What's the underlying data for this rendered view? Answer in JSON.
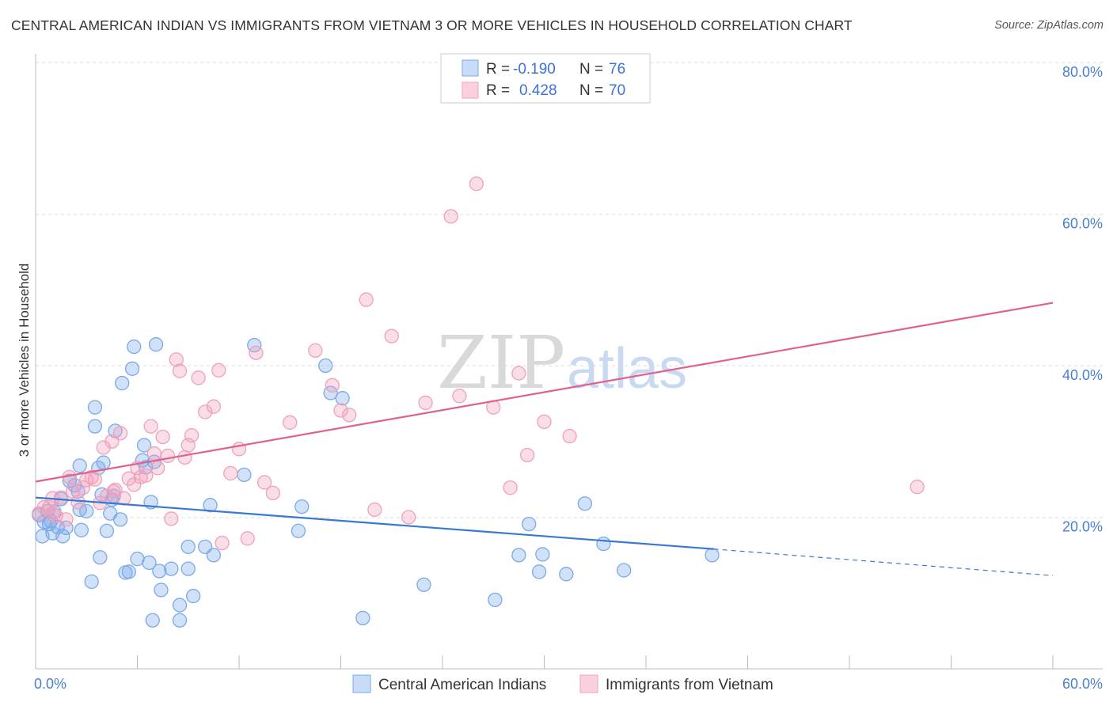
{
  "title": "CENTRAL AMERICAN INDIAN VS IMMIGRANTS FROM VIETNAM 3 OR MORE VEHICLES IN HOUSEHOLD CORRELATION CHART",
  "source": "Source: ZipAtlas.com",
  "watermark": {
    "zip": "ZIP",
    "atlas": "atlas"
  },
  "chart_data": {
    "type": "scatter",
    "ylabel": "3 or more Vehicles in Household",
    "xlim": [
      0,
      60
    ],
    "ylim": [
      0,
      80
    ],
    "x_tick_labels": [
      {
        "value": 0,
        "label": "0.0%"
      },
      {
        "value": 60,
        "label": "60.0%"
      }
    ],
    "y_tick_labels": [
      {
        "value": 20,
        "label": "20.0%"
      },
      {
        "value": 40,
        "label": "40.0%"
      },
      {
        "value": 60,
        "label": "60.0%"
      },
      {
        "value": 80,
        "label": "80.0%"
      }
    ],
    "legend": {
      "rows": [
        {
          "r_label": "R =",
          "r_value": "-0.190",
          "n_label": "N =",
          "n_value": "76",
          "color": "#7aaae8"
        },
        {
          "r_label": "R =",
          "r_value": "0.428",
          "n_label": "N =",
          "n_value": "70",
          "color": "#f0a0bb"
        }
      ]
    },
    "series": [
      {
        "name": "Central American Indians",
        "color": "#7aaae8",
        "line_color": "#3a78d4",
        "trend": {
          "x0": 0,
          "y0": 22.6,
          "x1": 40,
          "y1": 15.8,
          "dash_to_x": 60,
          "dash_to_y": 12.3
        },
        "points": [
          [
            0.2,
            20.3
          ],
          [
            0.4,
            17.5
          ],
          [
            0.5,
            19.4
          ],
          [
            0.7,
            20.8
          ],
          [
            0.8,
            19.1
          ],
          [
            0.9,
            19.5
          ],
          [
            1.0,
            17.9
          ],
          [
            1.1,
            20.7
          ],
          [
            1.3,
            18.7
          ],
          [
            1.5,
            22.4
          ],
          [
            1.6,
            17.5
          ],
          [
            1.8,
            18.6
          ],
          [
            2.0,
            24.8
          ],
          [
            2.3,
            24.2
          ],
          [
            2.6,
            21.0
          ],
          [
            2.7,
            18.3
          ],
          [
            2.5,
            23.4
          ],
          [
            3.0,
            20.8
          ],
          [
            3.3,
            11.5
          ],
          [
            3.5,
            34.5
          ],
          [
            3.7,
            26.5
          ],
          [
            3.8,
            14.7
          ],
          [
            3.9,
            23.0
          ],
          [
            4.0,
            27.2
          ],
          [
            3.5,
            32.0
          ],
          [
            4.2,
            18.2
          ],
          [
            4.4,
            20.5
          ],
          [
            4.5,
            22.3
          ],
          [
            4.6,
            22.8
          ],
          [
            4.7,
            31.4
          ],
          [
            5.0,
            19.7
          ],
          [
            5.1,
            37.7
          ],
          [
            5.3,
            12.7
          ],
          [
            5.5,
            12.8
          ],
          [
            5.7,
            39.6
          ],
          [
            5.8,
            42.5
          ],
          [
            6.0,
            14.5
          ],
          [
            6.3,
            27.5
          ],
          [
            6.5,
            26.6
          ],
          [
            6.7,
            14.0
          ],
          [
            6.8,
            22.0
          ],
          [
            6.9,
            6.4
          ],
          [
            7.0,
            27.3
          ],
          [
            7.1,
            42.8
          ],
          [
            7.3,
            12.9
          ],
          [
            7.4,
            10.4
          ],
          [
            8.0,
            13.2
          ],
          [
            8.5,
            8.4
          ],
          [
            8.5,
            6.4
          ],
          [
            9.0,
            16.1
          ],
          [
            9.0,
            13.2
          ],
          [
            9.3,
            9.6
          ],
          [
            10.0,
            16.1
          ],
          [
            10.3,
            21.6
          ],
          [
            12.3,
            25.6
          ],
          [
            12.9,
            42.7
          ],
          [
            15.5,
            18.2
          ],
          [
            15.7,
            21.4
          ],
          [
            17.1,
            40.0
          ],
          [
            17.4,
            36.4
          ],
          [
            18.1,
            35.7
          ],
          [
            19.3,
            6.7
          ],
          [
            22.9,
            11.1
          ],
          [
            27.1,
            9.1
          ],
          [
            28.5,
            15.0
          ],
          [
            29.1,
            19.1
          ],
          [
            29.7,
            12.8
          ],
          [
            29.9,
            15.1
          ],
          [
            31.3,
            12.5
          ],
          [
            32.4,
            21.8
          ],
          [
            33.5,
            16.5
          ],
          [
            34.7,
            13.0
          ],
          [
            39.9,
            15.0
          ],
          [
            6.4,
            29.5
          ],
          [
            10.5,
            15.0
          ],
          [
            2.6,
            26.8
          ]
        ]
      },
      {
        "name": "Immigrants from Vietnam",
        "color": "#f0a0bb",
        "line_color": "#e0608f",
        "trend": {
          "x0": 0,
          "y0": 24.7,
          "x1": 60,
          "y1": 48.3
        },
        "points": [
          [
            0.2,
            20.5
          ],
          [
            0.5,
            21.3
          ],
          [
            0.8,
            21.3
          ],
          [
            1.0,
            22.5
          ],
          [
            1.2,
            20.2
          ],
          [
            1.5,
            22.6
          ],
          [
            1.8,
            19.7
          ],
          [
            2.0,
            25.3
          ],
          [
            2.2,
            23.4
          ],
          [
            2.5,
            22.0
          ],
          [
            3.0,
            24.9
          ],
          [
            3.3,
            25.3
          ],
          [
            3.5,
            25.0
          ],
          [
            3.8,
            21.9
          ],
          [
            4.0,
            29.2
          ],
          [
            4.2,
            22.8
          ],
          [
            4.5,
            30.0
          ],
          [
            4.7,
            23.6
          ],
          [
            5.0,
            31.1
          ],
          [
            5.2,
            22.5
          ],
          [
            5.5,
            25.1
          ],
          [
            5.8,
            24.3
          ],
          [
            6.0,
            26.5
          ],
          [
            6.5,
            25.5
          ],
          [
            6.8,
            32.0
          ],
          [
            7.0,
            28.4
          ],
          [
            7.2,
            26.5
          ],
          [
            7.5,
            30.6
          ],
          [
            7.8,
            28.1
          ],
          [
            8.0,
            19.8
          ],
          [
            8.3,
            40.8
          ],
          [
            8.5,
            39.3
          ],
          [
            8.8,
            27.9
          ],
          [
            9.0,
            29.5
          ],
          [
            9.2,
            30.8
          ],
          [
            9.6,
            38.4
          ],
          [
            10.0,
            33.9
          ],
          [
            10.5,
            34.6
          ],
          [
            10.8,
            39.4
          ],
          [
            11.0,
            16.6
          ],
          [
            11.5,
            25.8
          ],
          [
            12.0,
            29.0
          ],
          [
            12.5,
            17.2
          ],
          [
            13.0,
            41.7
          ],
          [
            13.5,
            24.6
          ],
          [
            14.0,
            23.2
          ],
          [
            15.0,
            32.5
          ],
          [
            16.5,
            42.0
          ],
          [
            17.5,
            37.4
          ],
          [
            18.0,
            34.1
          ],
          [
            18.5,
            33.5
          ],
          [
            19.5,
            48.7
          ],
          [
            20.0,
            21.0
          ],
          [
            21.0,
            43.9
          ],
          [
            22.0,
            20.0
          ],
          [
            23.0,
            35.1
          ],
          [
            24.5,
            59.7
          ],
          [
            25.0,
            36.0
          ],
          [
            26.0,
            64.0
          ],
          [
            27.0,
            34.5
          ],
          [
            28.0,
            23.9
          ],
          [
            28.5,
            39.0
          ],
          [
            29.0,
            28.2
          ],
          [
            30.0,
            32.6
          ],
          [
            31.5,
            30.7
          ],
          [
            52.0,
            24.0
          ],
          [
            2.8,
            23.9
          ],
          [
            6.2,
            25.3
          ],
          [
            4.6,
            23.4
          ],
          [
            1.0,
            20.5
          ]
        ]
      }
    ]
  }
}
